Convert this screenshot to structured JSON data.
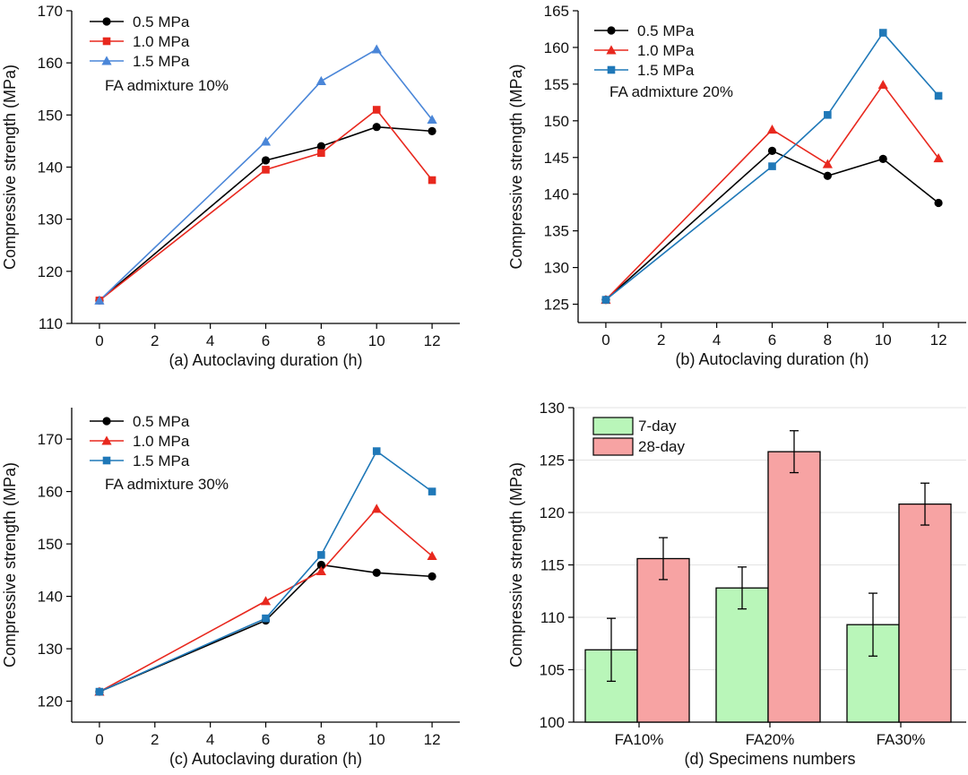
{
  "colors": {
    "s05": "#000000",
    "s10": "#e8281e",
    "s15_a": "#4a86d8",
    "s15_bc": "#1f78b8",
    "bar7": "#b9f6b9",
    "bar28": "#f7a3a3"
  },
  "chart_data": [
    {
      "id": "a",
      "type": "line",
      "xlabel": "(a) Autoclaving duration (h)",
      "ylabel": "Compressive strength (MPa)",
      "annotation": "FA admixture 10%",
      "xlim": [
        -1,
        13
      ],
      "ylim": [
        110,
        170
      ],
      "xticks": [
        "0",
        "2",
        "4",
        "6",
        "8",
        "10",
        "12"
      ],
      "yticks": [
        "110",
        "120",
        "130",
        "140",
        "150",
        "160",
        "170"
      ],
      "x": [
        0,
        6,
        8,
        10,
        12
      ],
      "series": [
        {
          "name": "0.5 MPa",
          "marker": "circle",
          "color": "#000000",
          "values": [
            114.4,
            141.3,
            144.0,
            147.7,
            146.9
          ]
        },
        {
          "name": "1.0 MPa",
          "marker": "square",
          "color": "#e8281e",
          "values": [
            114.4,
            139.5,
            142.7,
            151.0,
            137.5
          ]
        },
        {
          "name": "1.5 MPa",
          "marker": "triangle",
          "color": "#4a86d8",
          "values": [
            114.4,
            144.9,
            156.5,
            162.6,
            149.1
          ]
        }
      ]
    },
    {
      "id": "b",
      "type": "line",
      "xlabel": "(b) Autoclaving duration (h)",
      "ylabel": "Compressive strength (MPa)",
      "annotation": "FA admixture 20%",
      "xlim": [
        -1,
        13
      ],
      "ylim": [
        122.5,
        165
      ],
      "xticks": [
        "0",
        "2",
        "4",
        "6",
        "8",
        "10",
        "12"
      ],
      "yticks": [
        "125",
        "130",
        "135",
        "140",
        "145",
        "150",
        "155",
        "160",
        "165"
      ],
      "x": [
        0,
        6,
        8,
        10,
        12
      ],
      "series": [
        {
          "name": "0.5 MPa",
          "marker": "circle",
          "color": "#000000",
          "values": [
            125.6,
            145.9,
            142.5,
            144.8,
            138.8
          ]
        },
        {
          "name": "1.0 MPa",
          "marker": "triangle",
          "color": "#e8281e",
          "values": [
            125.6,
            148.8,
            144.1,
            154.9,
            144.9
          ]
        },
        {
          "name": "1.5 MPa",
          "marker": "square",
          "color": "#1f78b8",
          "values": [
            125.6,
            143.8,
            150.8,
            162.0,
            153.4
          ]
        }
      ]
    },
    {
      "id": "c",
      "type": "line",
      "xlabel": "(c) Autoclaving duration (h)",
      "ylabel": "Compressive strength (MPa)",
      "annotation": "FA admixture 30%",
      "xlim": [
        -1,
        13
      ],
      "ylim": [
        116,
        176
      ],
      "xticks": [
        "0",
        "2",
        "4",
        "6",
        "8",
        "10",
        "12"
      ],
      "yticks": [
        "120",
        "130",
        "140",
        "150",
        "160",
        "170"
      ],
      "x": [
        0,
        6,
        8,
        10,
        12
      ],
      "series": [
        {
          "name": "0.5 MPa",
          "marker": "circle",
          "color": "#000000",
          "values": [
            121.8,
            135.4,
            146.0,
            144.5,
            143.8
          ]
        },
        {
          "name": "1.0 MPa",
          "marker": "triangle",
          "color": "#e8281e",
          "values": [
            121.8,
            139.1,
            144.8,
            156.7,
            147.7
          ]
        },
        {
          "name": "1.5 MPa",
          "marker": "square",
          "color": "#1f78b8",
          "values": [
            121.8,
            135.8,
            147.9,
            167.7,
            160.0
          ]
        }
      ]
    },
    {
      "id": "d",
      "type": "bar",
      "xlabel": "(d) Specimens numbers",
      "ylabel": "Compressive strength (MPa)",
      "ylim": [
        100,
        130
      ],
      "yticks": [
        "100",
        "105",
        "110",
        "115",
        "120",
        "125",
        "130"
      ],
      "categories": [
        "FA10%",
        "FA20%",
        "FA30%"
      ],
      "series": [
        {
          "name": "7-day",
          "color": "#b9f6b9",
          "values": [
            106.9,
            112.8,
            109.3
          ],
          "errors": [
            3.0,
            2.0,
            3.0
          ]
        },
        {
          "name": "28-day",
          "color": "#f7a3a3",
          "values": [
            115.6,
            125.8,
            120.8
          ],
          "errors": [
            2.0,
            2.0,
            2.0
          ]
        }
      ]
    }
  ]
}
